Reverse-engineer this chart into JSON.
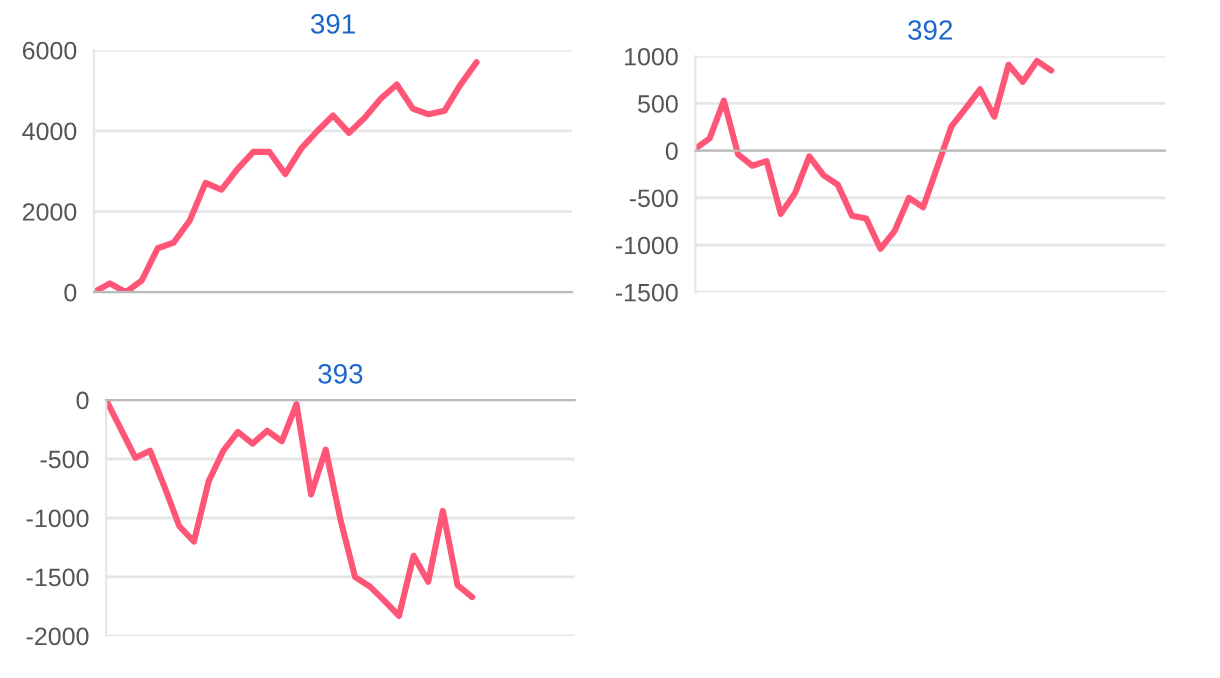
{
  "chart_data": [
    {
      "type": "line",
      "title": "391",
      "tick_labels": "y",
      "grid": "y",
      "legend": false,
      "marker": "none",
      "line_style": "solid",
      "categories": [
        null,
        null,
        null,
        null,
        null,
        null,
        null,
        null,
        null,
        null,
        null,
        null,
        null,
        null,
        null,
        null,
        null,
        null,
        null,
        null,
        null,
        null,
        null,
        null,
        null,
        null,
        null,
        null,
        null,
        null,
        null
      ],
      "series": [
        {
          "color": "#ff5577",
          "values": [
            0,
            220,
            0,
            290,
            1090,
            1230,
            1770,
            2710,
            2540,
            3050,
            3480,
            3480,
            2930,
            3560,
            3990,
            4380,
            3950,
            4330,
            4800,
            5150,
            4550,
            4410,
            4500,
            5150,
            5700,
            null,
            null,
            null,
            null,
            null,
            null
          ]
        }
      ],
      "ylim": [
        0,
        6000
      ],
      "yticks": [
        0,
        2000,
        4000,
        6000
      ]
    },
    {
      "type": "line",
      "title": "392",
      "tick_labels": "y",
      "grid": "y",
      "legend": false,
      "marker": "none",
      "line_style": "solid",
      "categories": [
        null,
        null,
        null,
        null,
        null,
        null,
        null,
        null,
        null,
        null,
        null,
        null,
        null,
        null,
        null,
        null,
        null,
        null,
        null,
        null,
        null,
        null,
        null,
        null,
        null,
        null,
        null,
        null,
        null,
        null,
        null,
        null,
        null,
        null
      ],
      "series": [
        {
          "color": "#ff5577",
          "values": [
            20,
            130,
            530,
            -40,
            -160,
            -110,
            -670,
            -450,
            -60,
            -260,
            -360,
            -690,
            -720,
            -1040,
            -850,
            -500,
            -600,
            -170,
            260,
            450,
            650,
            360,
            910,
            730,
            950,
            850,
            null,
            null,
            null,
            null,
            null,
            null,
            null,
            null
          ]
        }
      ],
      "ylim": [
        -1500,
        1000
      ],
      "yticks": [
        -1500,
        -1000,
        -500,
        0,
        500,
        1000
      ]
    },
    {
      "type": "line",
      "title": "393",
      "tick_labels": "y",
      "grid": "y",
      "legend": false,
      "marker": "none",
      "line_style": "solid",
      "categories": [
        null,
        null,
        null,
        null,
        null,
        null,
        null,
        null,
        null,
        null,
        null,
        null,
        null,
        null,
        null,
        null,
        null,
        null,
        null,
        null,
        null,
        null,
        null,
        null,
        null,
        null,
        null,
        null,
        null,
        null,
        null,
        null,
        null
      ],
      "series": [
        {
          "color": "#ff5577",
          "values": [
            0,
            -245,
            -490,
            -430,
            -740,
            -1070,
            -1200,
            -690,
            -430,
            -270,
            -370,
            -260,
            -350,
            -35,
            -800,
            -420,
            -1010,
            -1500,
            -1580,
            -1700,
            -1830,
            -1320,
            -1540,
            -940,
            -1570,
            -1670,
            null,
            null,
            null,
            null,
            null,
            null,
            null
          ]
        }
      ],
      "ylim": [
        -2000,
        0
      ],
      "yticks": [
        -2000,
        -1500,
        -1000,
        -500,
        0
      ]
    }
  ]
}
